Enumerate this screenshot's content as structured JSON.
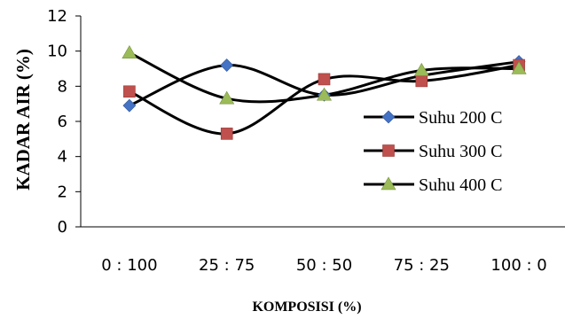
{
  "chart_data": {
    "type": "line",
    "xlabel": "KOMPOSISI (%)",
    "ylabel": "KADAR AIR (%)",
    "categories": [
      "0 : 100",
      "25 : 75",
      "50 : 50",
      "75 : 25",
      "100 : 0"
    ],
    "ylim": [
      0,
      12
    ],
    "yticks": [
      0,
      2,
      4,
      6,
      8,
      10,
      12
    ],
    "grid": false,
    "smooth": true,
    "legend_position": "right",
    "series": [
      {
        "name": "Suhu 200 C",
        "values": [
          6.9,
          9.2,
          7.5,
          8.6,
          9.4
        ],
        "color": "#4472C4",
        "marker": "diamond"
      },
      {
        "name": "Suhu 300 C",
        "values": [
          7.7,
          5.3,
          8.4,
          8.3,
          9.2
        ],
        "color": "#C0504D",
        "marker": "square"
      },
      {
        "name": "Suhu 400 C",
        "values": [
          9.9,
          7.3,
          7.5,
          8.9,
          9.0
        ],
        "color": "#9BBB59",
        "marker": "triangle"
      }
    ]
  }
}
